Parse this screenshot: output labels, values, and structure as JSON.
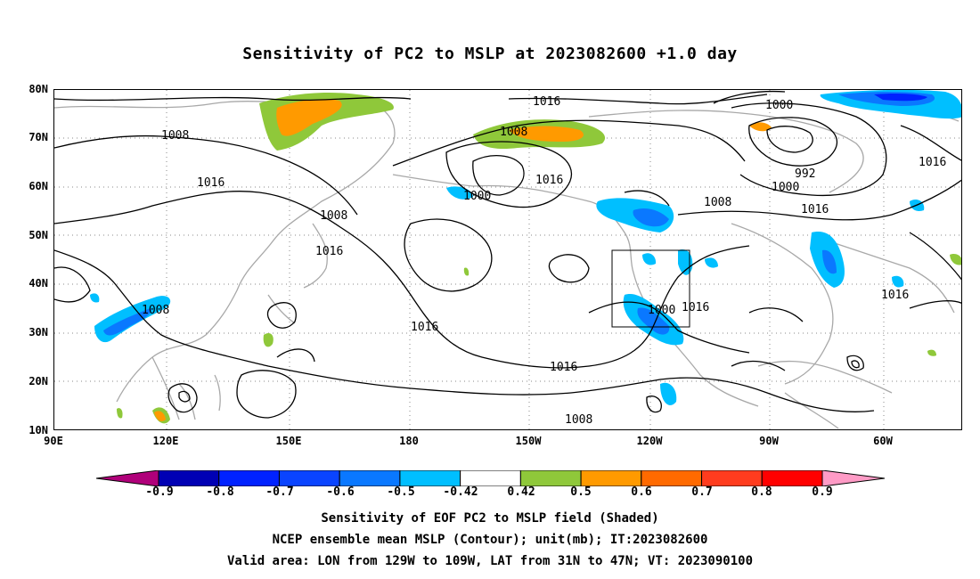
{
  "title": "Sensitivity of PC2 to MSLP at 2023082600 +1.0 day",
  "lat_labels": [
    "80N",
    "70N",
    "60N",
    "50N",
    "40N",
    "30N",
    "20N",
    "10N"
  ],
  "lon_labels": [
    "90E",
    "120E",
    "150E",
    "180",
    "150W",
    "120W",
    "90W",
    "60W"
  ],
  "contour_labels": [
    "1016",
    "1008",
    "1000",
    "1008",
    "1016",
    "1000",
    "992",
    "1000",
    "1016",
    "1016",
    "1008",
    "1016",
    "1008",
    "1016",
    "1016",
    "1016",
    "1016",
    "1000",
    "1016",
    "1008",
    "1008"
  ],
  "colorbar": {
    "labels": [
      "-0.9",
      "-0.8",
      "-0.7",
      "-0.6",
      "-0.5",
      "-0.42",
      "0.42",
      "0.5",
      "0.6",
      "0.7",
      "0.8",
      "0.9"
    ],
    "colors": [
      "#b0007a",
      "#0000b4",
      "#0022ff",
      "#0a44ff",
      "#0a78ff",
      "#00bfff",
      "#ffffff",
      "#8fc83a",
      "#ff9a00",
      "#ff6a00",
      "#ff3c1e",
      "#ff0000",
      "#ff9bc6"
    ]
  },
  "captions": [
    "Sensitivity of EOF PC2 to MSLP field (Shaded)",
    "NCEP ensemble mean MSLP (Contour); unit(mb); IT:2023082600",
    "Valid area: LON from 129W to 109W, LAT from 31N to 47N; VT: 2023090100"
  ]
}
